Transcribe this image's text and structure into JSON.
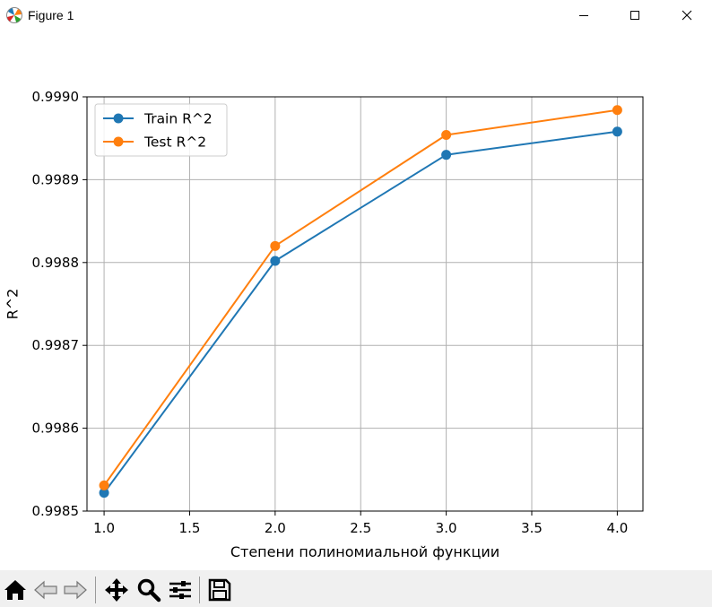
{
  "window": {
    "title": "Figure 1",
    "icons": {
      "app": "matplotlib-logo-icon",
      "minimize": "minimize-icon",
      "maximize": "maximize-icon",
      "close": "close-icon"
    }
  },
  "toolbar": {
    "buttons": [
      {
        "name": "home-button",
        "icon": "home-icon"
      },
      {
        "name": "back-button",
        "icon": "back-arrow-icon"
      },
      {
        "name": "forward-button",
        "icon": "forward-arrow-icon"
      },
      {
        "name": "pan-button",
        "icon": "move-arrows-icon"
      },
      {
        "name": "zoom-button",
        "icon": "magnifier-icon"
      },
      {
        "name": "configure-subplots-button",
        "icon": "sliders-icon"
      },
      {
        "name": "save-button",
        "icon": "floppy-disk-icon"
      }
    ]
  },
  "chart_data": {
    "type": "line",
    "title": "",
    "xlabel": "Степени полиномиальной функции",
    "ylabel": "R^2",
    "xlim": [
      0.9,
      4.15
    ],
    "ylim": [
      0.9985,
      0.999
    ],
    "x": [
      1.0,
      2.0,
      3.0,
      4.0
    ],
    "xticks": [
      1.0,
      1.5,
      2.0,
      2.5,
      3.0,
      3.5,
      4.0
    ],
    "xtick_labels": [
      "1.0",
      "1.5",
      "2.0",
      "2.5",
      "3.0",
      "3.5",
      "4.0"
    ],
    "yticks": [
      0.9985,
      0.9986,
      0.9987,
      0.9988,
      0.9989,
      0.999
    ],
    "ytick_labels": [
      "0.9985",
      "0.9986",
      "0.9987",
      "0.9988",
      "0.9989",
      "0.9990"
    ],
    "grid": true,
    "legend_position": "top-left",
    "series": [
      {
        "name": "Train R^2",
        "color": "#1f77b4",
        "values": [
          0.998522,
          0.998802,
          0.99893,
          0.998958
        ]
      },
      {
        "name": "Test R^2",
        "color": "#ff7f0e",
        "values": [
          0.998531,
          0.99882,
          0.998954,
          0.998984
        ]
      }
    ]
  }
}
